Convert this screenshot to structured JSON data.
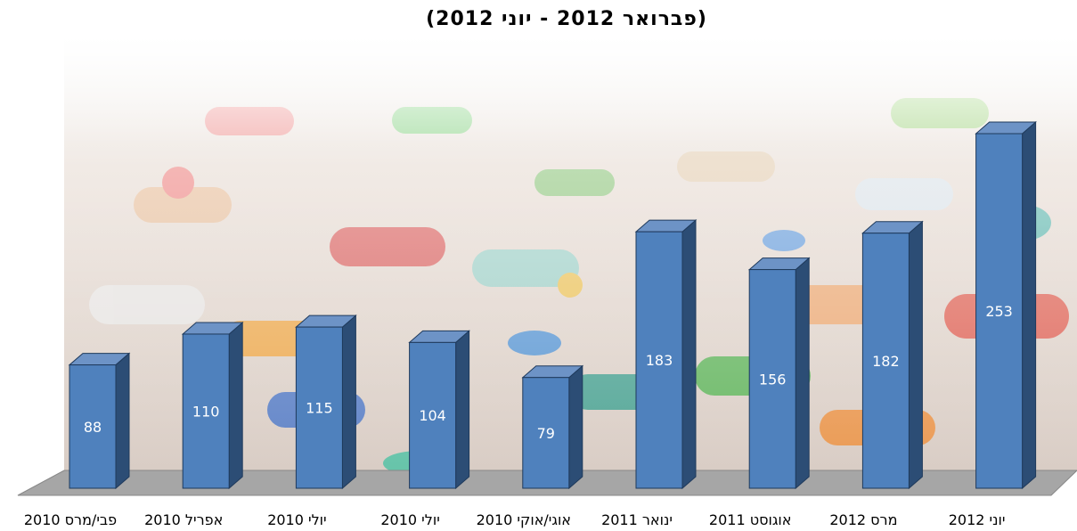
{
  "chart_data": {
    "type": "bar3d",
    "title": "(פברואר 2012 - יוני 2012)",
    "categories": [
      "פבי/מרס 2010",
      "אפריל 2010",
      "יולי 2010",
      "יולי 2010",
      "אוגי/אוקי 2010",
      "ינואר 2011",
      "אוגוסט 2011",
      "מרס 2012",
      "יוני 2012"
    ],
    "values": [
      88,
      110,
      115,
      104,
      79,
      183,
      156,
      182,
      253
    ],
    "color": "#4f81bd"
  }
}
